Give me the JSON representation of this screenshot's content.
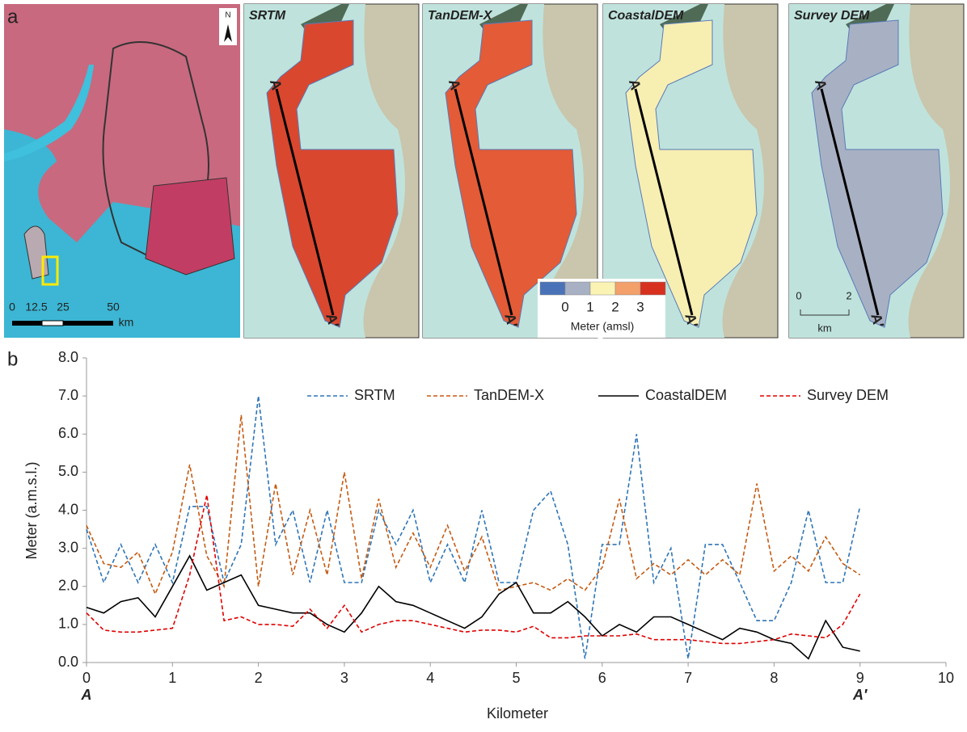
{
  "panel_a": {
    "label": "a",
    "overview": {
      "north": "N",
      "scale_labels": [
        "0",
        "12.5",
        "25",
        "50"
      ],
      "scale_unit": "km"
    },
    "maps": [
      {
        "title": "SRTM",
        "fill": "#d9472f"
      },
      {
        "title": "TanDEM-X",
        "fill": "#e35b37"
      },
      {
        "title": "CoastalDEM",
        "fill": "#f7eeb2"
      },
      {
        "title": "Survey DEM",
        "fill": "#a8b1c3"
      }
    ],
    "section_start": "A",
    "section_end": "A′",
    "legend": {
      "colors": [
        "#4a72b8",
        "#a8b1c3",
        "#fbf3b4",
        "#f3a06b",
        "#d7301f"
      ],
      "labels": [
        "0",
        "1",
        "2",
        "3"
      ],
      "title": "Meter (amsl)"
    },
    "map_scale": {
      "labels": [
        "0",
        "2"
      ],
      "unit": "km"
    }
  },
  "chart_data": {
    "type": "line",
    "label": "b",
    "x_label": "Kilometer",
    "y_label": "Meter (a.m.s.l.)",
    "x": [
      0,
      0.2,
      0.4,
      0.6,
      0.8,
      1,
      1.2,
      1.4,
      1.6,
      1.8,
      2,
      2.2,
      2.4,
      2.6,
      2.8,
      3,
      3.2,
      3.4,
      3.6,
      3.8,
      4,
      4.2,
      4.4,
      4.6,
      4.8,
      5,
      5.2,
      5.4,
      5.6,
      5.8,
      6,
      6.2,
      6.4,
      6.6,
      6.8,
      7,
      7.2,
      7.4,
      7.6,
      7.8,
      8,
      8.2,
      8.4,
      8.6,
      8.8,
      9
    ],
    "series": [
      {
        "name": "SRTM",
        "color": "#2e75b6",
        "dashed": true,
        "values": [
          3.5,
          2.1,
          3.1,
          2.1,
          3.1,
          2.1,
          4.1,
          4.1,
          2.1,
          3.1,
          7.0,
          3.1,
          4.0,
          2.1,
          4.0,
          2.1,
          2.1,
          4.0,
          3.1,
          4.0,
          2.1,
          3.1,
          2.1,
          4.0,
          2.1,
          2.1,
          4.0,
          4.5,
          3.1,
          0.1,
          3.1,
          3.1,
          6.0,
          2.1,
          3.0,
          0.1,
          3.1,
          3.1,
          2.1,
          1.1,
          1.1,
          2.1,
          4.0,
          2.1,
          2.1,
          4.1
        ]
      },
      {
        "name": "TanDEM-X",
        "color": "#c55a11",
        "dashed": true,
        "values": [
          3.6,
          2.6,
          2.5,
          2.9,
          1.8,
          2.9,
          5.2,
          2.8,
          2.0,
          6.5,
          2.0,
          4.7,
          2.3,
          4.0,
          2.3,
          5.0,
          2.2,
          4.3,
          2.5,
          3.4,
          2.5,
          3.6,
          2.4,
          3.3,
          1.9,
          2.0,
          2.1,
          1.9,
          2.2,
          1.9,
          2.5,
          4.3,
          2.2,
          2.6,
          2.3,
          2.7,
          2.3,
          2.7,
          2.3,
          4.7,
          2.4,
          2.8,
          2.4,
          3.3,
          2.6,
          2.3
        ]
      },
      {
        "name": "CoastalDEM",
        "color": "#000000",
        "dashed": false,
        "values": [
          1.45,
          1.3,
          1.6,
          1.7,
          1.2,
          2.0,
          2.8,
          1.9,
          2.1,
          2.3,
          1.5,
          1.4,
          1.3,
          1.3,
          1.0,
          0.8,
          1.3,
          2.0,
          1.6,
          1.5,
          1.3,
          1.1,
          0.9,
          1.2,
          1.8,
          2.1,
          1.3,
          1.3,
          1.6,
          1.2,
          0.7,
          1.0,
          0.8,
          1.2,
          1.2,
          1.0,
          0.8,
          0.6,
          0.9,
          0.8,
          0.6,
          0.5,
          0.1,
          1.1,
          0.4,
          0.3
        ]
      },
      {
        "name": "Survey DEM",
        "color": "#e00000",
        "dashed": true,
        "values": [
          1.3,
          0.85,
          0.8,
          0.8,
          0.85,
          0.9,
          2.3,
          4.4,
          1.1,
          1.2,
          1.0,
          1.0,
          0.95,
          1.4,
          0.9,
          1.5,
          0.8,
          1.0,
          1.1,
          1.1,
          1.0,
          0.9,
          0.8,
          0.85,
          0.85,
          0.8,
          0.95,
          0.65,
          0.65,
          0.7,
          0.7,
          0.7,
          0.75,
          0.6,
          0.6,
          0.6,
          0.55,
          0.5,
          0.5,
          0.55,
          0.6,
          0.75,
          0.7,
          0.65,
          1.0,
          1.8
        ]
      }
    ],
    "xlim": [
      0,
      10
    ],
    "xticks": [
      0,
      1,
      2,
      3,
      4,
      5,
      6,
      7,
      8,
      9,
      10
    ],
    "ylim": [
      0,
      8
    ],
    "yticks": [
      {
        "value": 0,
        "label": "0.0"
      },
      {
        "value": 1,
        "label": "1.0"
      },
      {
        "value": 2,
        "label": "2.0"
      },
      {
        "value": 3,
        "label": "3.0"
      },
      {
        "value": 4,
        "label": "4.0"
      },
      {
        "value": 5,
        "label": "5.0"
      },
      {
        "value": 6,
        "label": "6.0"
      },
      {
        "value": 7,
        "label": "7.0"
      },
      {
        "value": 8,
        "label": "8.0"
      }
    ],
    "grid": false,
    "annotations": [
      {
        "text": "A",
        "x": 0
      },
      {
        "text": "A′",
        "x": 9
      }
    ]
  }
}
